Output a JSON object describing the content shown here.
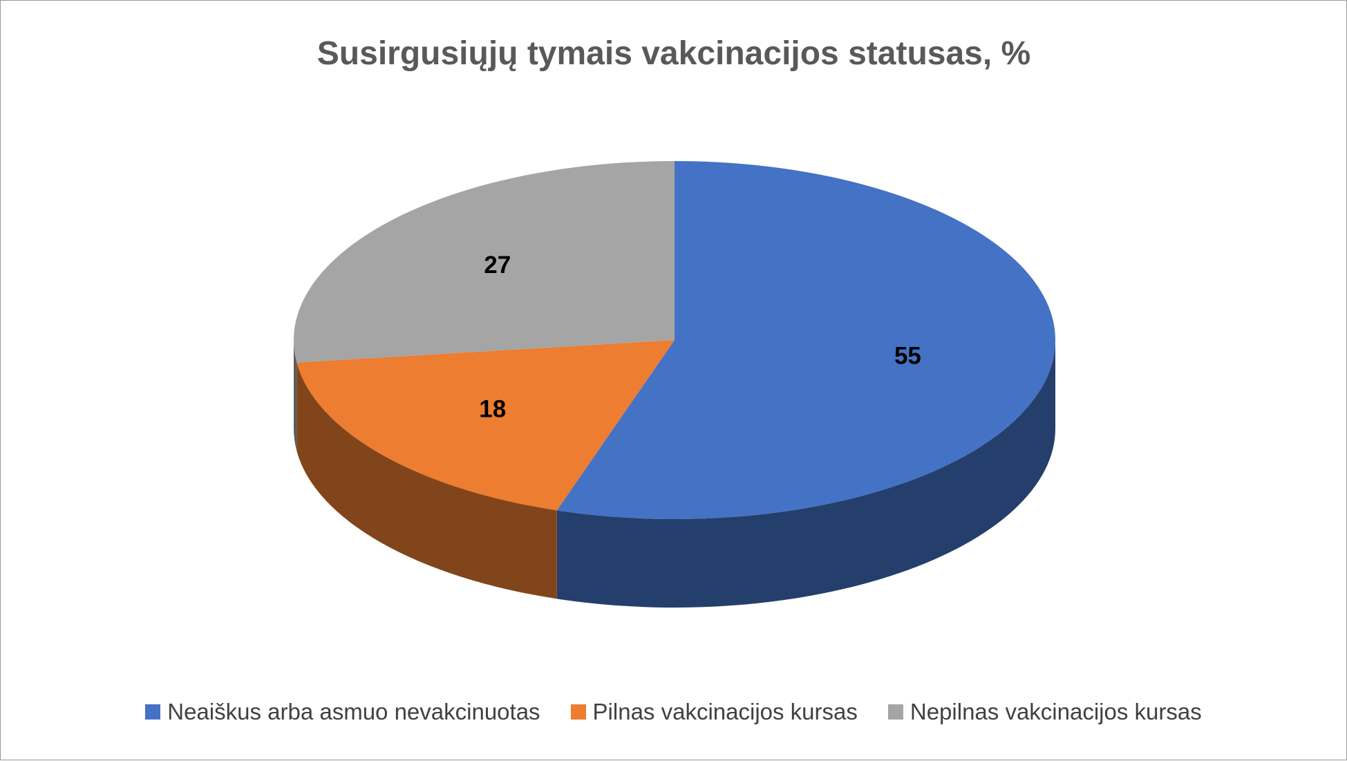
{
  "chart_data": {
    "type": "pie",
    "title": "Susirgusiųjų tymais vakcinacijos statusas, %",
    "categories": [
      "Neaiškus arba asmuo nevakcinuotas",
      "Pilnas vakcinacijos kursas",
      "Nepilnas vakcinacijos kursas"
    ],
    "values": [
      55,
      18,
      27
    ],
    "colors": [
      "#4472c4",
      "#ed7d31",
      "#a5a5a5"
    ],
    "legend": "bottom"
  }
}
